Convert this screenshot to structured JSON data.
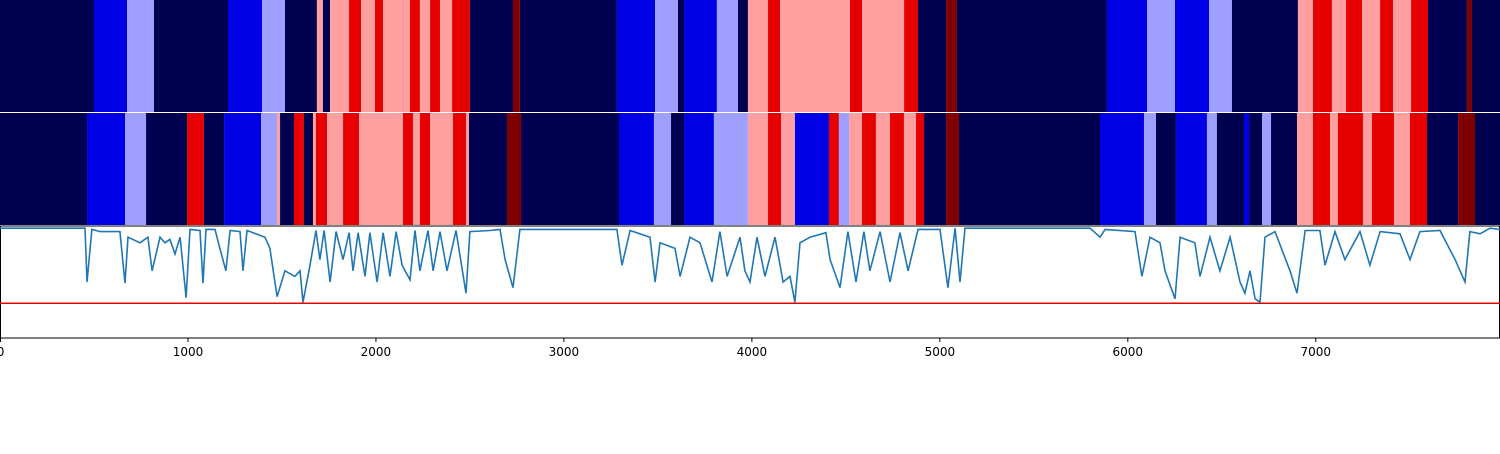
{
  "chart_data": {
    "type": "segments_line",
    "xlim": [
      0,
      7980
    ],
    "xticks": [
      0,
      1000,
      2000,
      3000,
      4000,
      5000,
      6000,
      7000
    ],
    "palette": {
      "N": "#000050",
      "B": "#0000e6",
      "LB": "#9f9fff",
      "LR": "#ff9f9f",
      "R": "#e60000",
      "DR": "#800000"
    },
    "bands": [
      [
        [
          0,
          500,
          "N"
        ],
        [
          500,
          676,
          "B"
        ],
        [
          676,
          819,
          "LB"
        ],
        [
          819,
          1213,
          "N"
        ],
        [
          1213,
          1394,
          "B"
        ],
        [
          1394,
          1516,
          "LB"
        ],
        [
          1516,
          1686,
          "N"
        ],
        [
          1686,
          1718,
          "LR"
        ],
        [
          1718,
          1756,
          "N"
        ],
        [
          1756,
          1857,
          "LR"
        ],
        [
          1857,
          1921,
          "R"
        ],
        [
          1921,
          1995,
          "LR"
        ],
        [
          1995,
          2038,
          "R"
        ],
        [
          2038,
          2181,
          "LR"
        ],
        [
          2181,
          2234,
          "R"
        ],
        [
          2234,
          2288,
          "LR"
        ],
        [
          2288,
          2341,
          "R"
        ],
        [
          2341,
          2405,
          "LR"
        ],
        [
          2405,
          2500,
          "R"
        ],
        [
          2500,
          2729,
          "N"
        ],
        [
          2729,
          2766,
          "DR"
        ],
        [
          2766,
          3282,
          "N"
        ],
        [
          3282,
          3485,
          "B"
        ],
        [
          3485,
          3607,
          "LB"
        ],
        [
          3607,
          3639,
          "N"
        ],
        [
          3639,
          3814,
          "B"
        ],
        [
          3814,
          3926,
          "LB"
        ],
        [
          3926,
          3979,
          "N"
        ],
        [
          3979,
          4086,
          "LR"
        ],
        [
          4086,
          4150,
          "R"
        ],
        [
          4150,
          4522,
          "LR"
        ],
        [
          4522,
          4586,
          "R"
        ],
        [
          4586,
          4810,
          "LR"
        ],
        [
          4810,
          4884,
          "R"
        ],
        [
          4884,
          5033,
          "N"
        ],
        [
          5033,
          5091,
          "DR"
        ],
        [
          5091,
          5889,
          "N"
        ],
        [
          5889,
          6102,
          "B"
        ],
        [
          6102,
          6251,
          "LB"
        ],
        [
          6251,
          6432,
          "B"
        ],
        [
          6432,
          6554,
          "LB"
        ],
        [
          6554,
          6905,
          "N"
        ],
        [
          6905,
          6985,
          "LR"
        ],
        [
          6985,
          7086,
          "R"
        ],
        [
          7086,
          7161,
          "LR"
        ],
        [
          7161,
          7246,
          "R"
        ],
        [
          7246,
          7342,
          "LR"
        ],
        [
          7342,
          7411,
          "R"
        ],
        [
          7411,
          7507,
          "LR"
        ],
        [
          7507,
          7597,
          "R"
        ],
        [
          7597,
          7804,
          "N"
        ],
        [
          7804,
          7831,
          "DR"
        ],
        [
          7831,
          7980,
          "N"
        ]
      ],
      [
        [
          0,
          463,
          "N"
        ],
        [
          463,
          665,
          "B"
        ],
        [
          665,
          777,
          "LB"
        ],
        [
          777,
          995,
          "N"
        ],
        [
          995,
          1085,
          "R"
        ],
        [
          1085,
          1192,
          "N"
        ],
        [
          1192,
          1389,
          "B"
        ],
        [
          1389,
          1474,
          "LB"
        ],
        [
          1474,
          1490,
          "LR"
        ],
        [
          1490,
          1564,
          "N"
        ],
        [
          1564,
          1617,
          "R"
        ],
        [
          1617,
          1665,
          "N"
        ],
        [
          1665,
          1681,
          "LR"
        ],
        [
          1681,
          1740,
          "R"
        ],
        [
          1740,
          1825,
          "LR"
        ],
        [
          1825,
          1910,
          "R"
        ],
        [
          1910,
          2144,
          "LR"
        ],
        [
          2144,
          2197,
          "R"
        ],
        [
          2197,
          2234,
          "LR"
        ],
        [
          2234,
          2288,
          "R"
        ],
        [
          2288,
          2410,
          "LR"
        ],
        [
          2410,
          2479,
          "R"
        ],
        [
          2479,
          2495,
          "LR"
        ],
        [
          2495,
          2697,
          "N"
        ],
        [
          2697,
          2772,
          "DR"
        ],
        [
          2772,
          3293,
          "N"
        ],
        [
          3293,
          3479,
          "B"
        ],
        [
          3479,
          3570,
          "LB"
        ],
        [
          3570,
          3639,
          "N"
        ],
        [
          3639,
          3798,
          "B"
        ],
        [
          3798,
          3979,
          "LB"
        ],
        [
          3979,
          4086,
          "LR"
        ],
        [
          4086,
          4155,
          "R"
        ],
        [
          4155,
          4229,
          "LR"
        ],
        [
          4229,
          4410,
          "B"
        ],
        [
          4410,
          4463,
          "R"
        ],
        [
          4463,
          4517,
          "LB"
        ],
        [
          4517,
          4586,
          "LR"
        ],
        [
          4586,
          4660,
          "R"
        ],
        [
          4660,
          4735,
          "LR"
        ],
        [
          4735,
          4809,
          "R"
        ],
        [
          4809,
          4873,
          "LR"
        ],
        [
          4873,
          4916,
          "R"
        ],
        [
          4916,
          5033,
          "N"
        ],
        [
          5033,
          5102,
          "DR"
        ],
        [
          5102,
          5852,
          "N"
        ],
        [
          5852,
          6086,
          "B"
        ],
        [
          6086,
          6150,
          "LB"
        ],
        [
          6150,
          6256,
          "N"
        ],
        [
          6256,
          6421,
          "B"
        ],
        [
          6421,
          6474,
          "LB"
        ],
        [
          6474,
          6618,
          "N"
        ],
        [
          6618,
          6645,
          "B"
        ],
        [
          6645,
          6714,
          "N"
        ],
        [
          6714,
          6762,
          "LB"
        ],
        [
          6762,
          6900,
          "N"
        ],
        [
          6900,
          6985,
          "LR"
        ],
        [
          6985,
          7076,
          "R"
        ],
        [
          7076,
          7118,
          "LR"
        ],
        [
          7118,
          7251,
          "R"
        ],
        [
          7251,
          7299,
          "LR"
        ],
        [
          7299,
          7416,
          "R"
        ],
        [
          7416,
          7501,
          "LR"
        ],
        [
          7501,
          7592,
          "R"
        ],
        [
          7592,
          7757,
          "N"
        ],
        [
          7757,
          7847,
          "DR"
        ],
        [
          7847,
          7980,
          "N"
        ]
      ]
    ],
    "ylim": [
      0,
      1
    ],
    "threshold": 0.31,
    "threshold_color": "#e00000",
    "line_color": "#1f77b4",
    "x": [
      0,
      452,
      463,
      489,
      532,
      638,
      665,
      681,
      745,
      787,
      809,
      851,
      878,
      904,
      931,
      958,
      990,
      1011,
      1064,
      1080,
      1096,
      1144,
      1170,
      1202,
      1224,
      1277,
      1293,
      1314,
      1410,
      1436,
      1474,
      1516,
      1569,
      1596,
      1612,
      1649,
      1681,
      1702,
      1724,
      1756,
      1788,
      1825,
      1857,
      1878,
      1905,
      1942,
      1968,
      2006,
      2038,
      2075,
      2107,
      2139,
      2181,
      2208,
      2234,
      2277,
      2304,
      2341,
      2378,
      2426,
      2479,
      2500,
      2607,
      2660,
      2687,
      2729,
      2766,
      3282,
      3309,
      3352,
      3458,
      3485,
      3511,
      3591,
      3618,
      3671,
      3724,
      3788,
      3830,
      3868,
      3937,
      3963,
      3990,
      4027,
      4070,
      4123,
      4166,
      4203,
      4229,
      4256,
      4309,
      4394,
      4416,
      4469,
      4511,
      4554,
      4596,
      4628,
      4682,
      4735,
      4788,
      4831,
      4884,
      5001,
      5043,
      5081,
      5107,
      5134,
      5799,
      5852,
      5879,
      6038,
      6075,
      6118,
      6171,
      6198,
      6251,
      6278,
      6357,
      6384,
      6437,
      6490,
      6544,
      6597,
      6623,
      6650,
      6677,
      6703,
      6730,
      6783,
      6863,
      6900,
      6943,
      7022,
      7049,
      7102,
      7155,
      7235,
      7288,
      7342,
      7448,
      7501,
      7554,
      7661,
      7741,
      7794,
      7820,
      7874,
      7927,
      7980
    ],
    "values": [
      0.98,
      0.98,
      0.5,
      0.97,
      0.95,
      0.95,
      0.49,
      0.9,
      0.85,
      0.9,
      0.6,
      0.9,
      0.85,
      0.88,
      0.75,
      0.9,
      0.36,
      0.97,
      0.96,
      0.49,
      0.97,
      0.97,
      0.8,
      0.6,
      0.96,
      0.95,
      0.6,
      0.96,
      0.9,
      0.8,
      0.37,
      0.6,
      0.55,
      0.6,
      0.32,
      0.65,
      0.96,
      0.7,
      0.96,
      0.5,
      0.95,
      0.7,
      0.94,
      0.6,
      0.94,
      0.55,
      0.94,
      0.5,
      0.94,
      0.55,
      0.95,
      0.65,
      0.52,
      0.96,
      0.6,
      0.96,
      0.6,
      0.95,
      0.6,
      0.96,
      0.4,
      0.95,
      0.96,
      0.97,
      0.7,
      0.45,
      0.97,
      0.97,
      0.65,
      0.96,
      0.9,
      0.5,
      0.85,
      0.8,
      0.55,
      0.9,
      0.85,
      0.5,
      0.95,
      0.55,
      0.9,
      0.6,
      0.5,
      0.9,
      0.55,
      0.9,
      0.5,
      0.55,
      0.32,
      0.85,
      0.9,
      0.94,
      0.7,
      0.45,
      0.95,
      0.5,
      0.95,
      0.6,
      0.95,
      0.5,
      0.94,
      0.6,
      0.97,
      0.97,
      0.45,
      0.98,
      0.5,
      0.98,
      0.98,
      0.9,
      0.97,
      0.95,
      0.55,
      0.9,
      0.85,
      0.6,
      0.35,
      0.9,
      0.85,
      0.55,
      0.9,
      0.6,
      0.9,
      0.5,
      0.4,
      0.6,
      0.35,
      0.32,
      0.9,
      0.95,
      0.6,
      0.4,
      0.96,
      0.96,
      0.65,
      0.95,
      0.7,
      0.95,
      0.65,
      0.95,
      0.93,
      0.7,
      0.95,
      0.96,
      0.7,
      0.5,
      0.95,
      0.93,
      0.98,
      0.97
    ]
  }
}
